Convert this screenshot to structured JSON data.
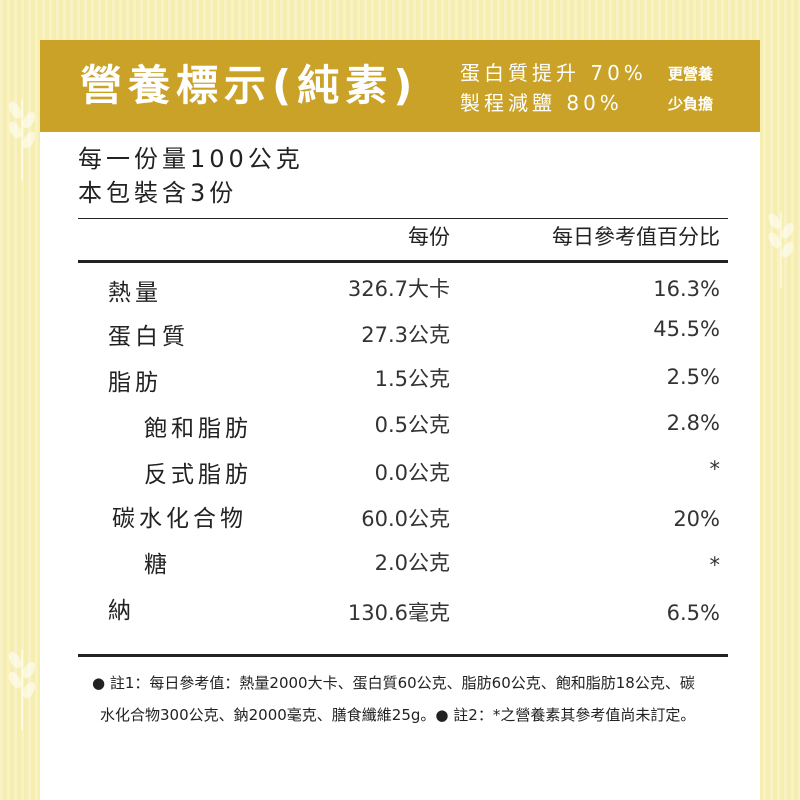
{
  "header": {
    "title": "營養標示(純素)",
    "claim1": "蛋白質提升 70%",
    "claim1_side": "更營養",
    "claim2": "製程減鹽 80%",
    "claim2_side": "少負擔"
  },
  "serving": {
    "line1": "每一份量100公克",
    "line2": "本包裝含3份"
  },
  "columns": {
    "per_serving": "每份",
    "daily_pct": "每日參考值百分比"
  },
  "rows": [
    {
      "label": "熱量",
      "value": "326.7大卡",
      "pct": "16.3%"
    },
    {
      "label": "蛋白質",
      "value": "27.3公克",
      "pct": "45.5%"
    },
    {
      "label": "脂肪",
      "value": "1.5公克",
      "pct": "2.5%"
    },
    {
      "label": "飽和脂肪",
      "value": "0.5公克",
      "pct": "2.8%"
    },
    {
      "label": "反式脂肪",
      "value": "0.0公克",
      "pct": "*"
    },
    {
      "label": "碳水化合物",
      "value": "60.0公克",
      "pct": "20%"
    },
    {
      "label": "糖",
      "value": "2.0公克",
      "pct": "*"
    },
    {
      "label": "納",
      "value": "130.6毫克",
      "pct": "6.5%"
    }
  ],
  "footnote": {
    "line1": "● 註1：每日參考值：熱量2000大卡、蛋白質60公克、脂肪60公克、飽和脂肪18公克、碳",
    "line2": "水化合物300公克、鈉2000毫克、膳食纖維25g。● 註2：*之營養素其參考值尚未訂定。"
  },
  "colors": {
    "background": "#f6eeb0",
    "header": "#c9a227",
    "text": "#222222"
  },
  "icons": [
    "wheat-icon"
  ]
}
